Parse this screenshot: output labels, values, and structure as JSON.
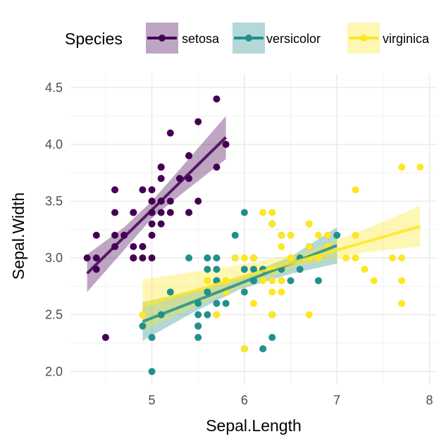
{
  "chart_data": {
    "type": "scatter",
    "title": "",
    "xlabel": "Sepal.Length",
    "ylabel": "Sepal.Width",
    "xlim": [
      4.12,
      8.08
    ],
    "ylim": [
      1.89,
      4.62
    ],
    "x_ticks": [
      5,
      6,
      7,
      8
    ],
    "x_tick_labels": [
      "5",
      "6",
      "7",
      "8"
    ],
    "y_ticks": [
      2.0,
      2.5,
      3.0,
      3.5,
      4.0,
      4.5
    ],
    "y_tick_labels": [
      "2.0",
      "2.5",
      "3.0",
      "3.5",
      "4.0",
      "4.5"
    ],
    "grid": true,
    "legend": {
      "title": "Species",
      "placement": "top"
    },
    "series": [
      {
        "name": "setosa",
        "color": "#440154",
        "points": [
          [
            5.1,
            3.5
          ],
          [
            4.9,
            3.0
          ],
          [
            4.7,
            3.2
          ],
          [
            4.6,
            3.1
          ],
          [
            5.0,
            3.6
          ],
          [
            5.4,
            3.9
          ],
          [
            4.6,
            3.4
          ],
          [
            5.0,
            3.4
          ],
          [
            4.4,
            2.9
          ],
          [
            4.9,
            3.1
          ],
          [
            5.4,
            3.7
          ],
          [
            4.8,
            3.4
          ],
          [
            4.8,
            3.0
          ],
          [
            4.3,
            3.0
          ],
          [
            5.8,
            4.0
          ],
          [
            5.7,
            4.4
          ],
          [
            5.4,
            3.9
          ],
          [
            5.1,
            3.5
          ],
          [
            5.7,
            3.8
          ],
          [
            5.1,
            3.8
          ],
          [
            5.4,
            3.4
          ],
          [
            5.1,
            3.7
          ],
          [
            4.6,
            3.6
          ],
          [
            5.1,
            3.3
          ],
          [
            4.8,
            3.4
          ],
          [
            5.0,
            3.0
          ],
          [
            5.0,
            3.4
          ],
          [
            5.2,
            3.5
          ],
          [
            5.2,
            3.4
          ],
          [
            4.7,
            3.2
          ],
          [
            4.8,
            3.1
          ],
          [
            5.4,
            3.4
          ],
          [
            5.2,
            4.1
          ],
          [
            5.5,
            4.2
          ],
          [
            4.9,
            3.1
          ],
          [
            5.0,
            3.2
          ],
          [
            5.5,
            3.5
          ],
          [
            4.9,
            3.6
          ],
          [
            4.4,
            3.0
          ],
          [
            5.1,
            3.4
          ],
          [
            5.0,
            3.5
          ],
          [
            4.5,
            2.3
          ],
          [
            4.4,
            3.2
          ],
          [
            5.0,
            3.5
          ],
          [
            5.1,
            3.8
          ],
          [
            4.8,
            3.0
          ],
          [
            5.1,
            3.8
          ],
          [
            4.6,
            3.2
          ],
          [
            5.3,
            3.7
          ],
          [
            5.0,
            3.3
          ]
        ],
        "fit": [
          [
            4.3,
            2.864
          ],
          [
            5.8,
            4.062
          ]
        ],
        "ci": [
          [
            4.3,
            2.7,
            3.03
          ],
          [
            4.7,
            3.07,
            3.27
          ],
          [
            5.0,
            3.35,
            3.5
          ],
          [
            5.3,
            3.55,
            3.78
          ],
          [
            5.8,
            3.87,
            4.25
          ]
        ]
      },
      {
        "name": "versicolor",
        "color": "#21908C",
        "points": [
          [
            7.0,
            3.2
          ],
          [
            6.4,
            3.2
          ],
          [
            6.9,
            3.1
          ],
          [
            5.5,
            2.3
          ],
          [
            6.5,
            2.8
          ],
          [
            5.7,
            2.8
          ],
          [
            6.3,
            3.3
          ],
          [
            4.9,
            2.4
          ],
          [
            6.6,
            2.9
          ],
          [
            5.2,
            2.7
          ],
          [
            5.0,
            2.0
          ],
          [
            5.9,
            3.0
          ],
          [
            6.0,
            2.2
          ],
          [
            6.1,
            2.9
          ],
          [
            5.6,
            2.9
          ],
          [
            6.7,
            3.1
          ],
          [
            5.6,
            3.0
          ],
          [
            5.8,
            2.7
          ],
          [
            6.2,
            2.2
          ],
          [
            5.6,
            2.5
          ],
          [
            5.9,
            3.2
          ],
          [
            6.1,
            2.8
          ],
          [
            6.3,
            2.5
          ],
          [
            6.1,
            2.8
          ],
          [
            6.4,
            2.9
          ],
          [
            6.6,
            3.0
          ],
          [
            6.8,
            2.8
          ],
          [
            6.7,
            3.0
          ],
          [
            6.0,
            2.9
          ],
          [
            5.7,
            2.6
          ],
          [
            5.5,
            2.4
          ],
          [
            5.5,
            2.4
          ],
          [
            5.8,
            2.7
          ],
          [
            6.0,
            2.7
          ],
          [
            5.4,
            3.0
          ],
          [
            6.0,
            3.4
          ],
          [
            6.7,
            3.1
          ],
          [
            6.3,
            2.3
          ],
          [
            5.6,
            3.0
          ],
          [
            5.5,
            2.5
          ],
          [
            5.5,
            2.6
          ],
          [
            6.1,
            3.0
          ],
          [
            5.8,
            2.6
          ],
          [
            5.0,
            2.3
          ],
          [
            5.6,
            2.7
          ],
          [
            5.7,
            3.0
          ],
          [
            5.7,
            2.9
          ],
          [
            6.2,
            2.9
          ],
          [
            5.1,
            2.5
          ],
          [
            5.7,
            2.8
          ]
        ],
        "fit": [
          [
            4.9,
            2.439
          ],
          [
            7.0,
            3.11
          ]
        ],
        "ci": [
          [
            4.9,
            2.27,
            2.61
          ],
          [
            5.4,
            2.5,
            2.7
          ],
          [
            5.94,
            2.72,
            2.83
          ],
          [
            6.5,
            2.86,
            3.01
          ],
          [
            7.0,
            2.95,
            3.27
          ]
        ]
      },
      {
        "name": "virginica",
        "color": "#FDE725",
        "points": [
          [
            6.3,
            3.3
          ],
          [
            5.8,
            2.7
          ],
          [
            7.1,
            3.0
          ],
          [
            6.3,
            2.9
          ],
          [
            6.5,
            3.0
          ],
          [
            7.6,
            3.0
          ],
          [
            4.9,
            2.5
          ],
          [
            7.3,
            2.9
          ],
          [
            6.7,
            2.5
          ],
          [
            7.2,
            3.6
          ],
          [
            6.5,
            3.2
          ],
          [
            6.4,
            2.7
          ],
          [
            6.8,
            3.0
          ],
          [
            5.7,
            2.5
          ],
          [
            5.8,
            2.8
          ],
          [
            6.4,
            3.2
          ],
          [
            6.5,
            3.0
          ],
          [
            7.7,
            3.8
          ],
          [
            7.7,
            2.6
          ],
          [
            6.0,
            2.2
          ],
          [
            6.9,
            3.2
          ],
          [
            5.6,
            2.8
          ],
          [
            7.7,
            2.8
          ],
          [
            6.3,
            2.7
          ],
          [
            6.7,
            3.3
          ],
          [
            7.2,
            3.2
          ],
          [
            6.2,
            2.8
          ],
          [
            6.1,
            3.0
          ],
          [
            6.4,
            2.8
          ],
          [
            7.2,
            3.0
          ],
          [
            7.4,
            2.8
          ],
          [
            7.9,
            3.8
          ],
          [
            6.4,
            2.8
          ],
          [
            6.3,
            2.8
          ],
          [
            6.1,
            2.6
          ],
          [
            7.7,
            3.0
          ],
          [
            6.3,
            3.4
          ],
          [
            6.4,
            3.1
          ],
          [
            6.0,
            3.0
          ],
          [
            6.9,
            3.1
          ],
          [
            6.7,
            3.1
          ],
          [
            6.9,
            3.1
          ],
          [
            5.8,
            2.7
          ],
          [
            6.8,
            3.2
          ],
          [
            6.7,
            3.3
          ],
          [
            6.7,
            3.0
          ],
          [
            6.3,
            2.5
          ],
          [
            6.5,
            3.0
          ],
          [
            6.2,
            3.4
          ],
          [
            5.9,
            3.0
          ]
        ],
        "fit": [
          [
            4.9,
            2.583
          ],
          [
            7.9,
            3.278
          ]
        ],
        "ci": [
          [
            4.9,
            2.36,
            2.81
          ],
          [
            5.8,
            2.69,
            2.92
          ],
          [
            6.6,
            2.93,
            3.04
          ],
          [
            7.3,
            3.05,
            3.25
          ],
          [
            7.9,
            3.1,
            3.46
          ]
        ]
      }
    ]
  }
}
